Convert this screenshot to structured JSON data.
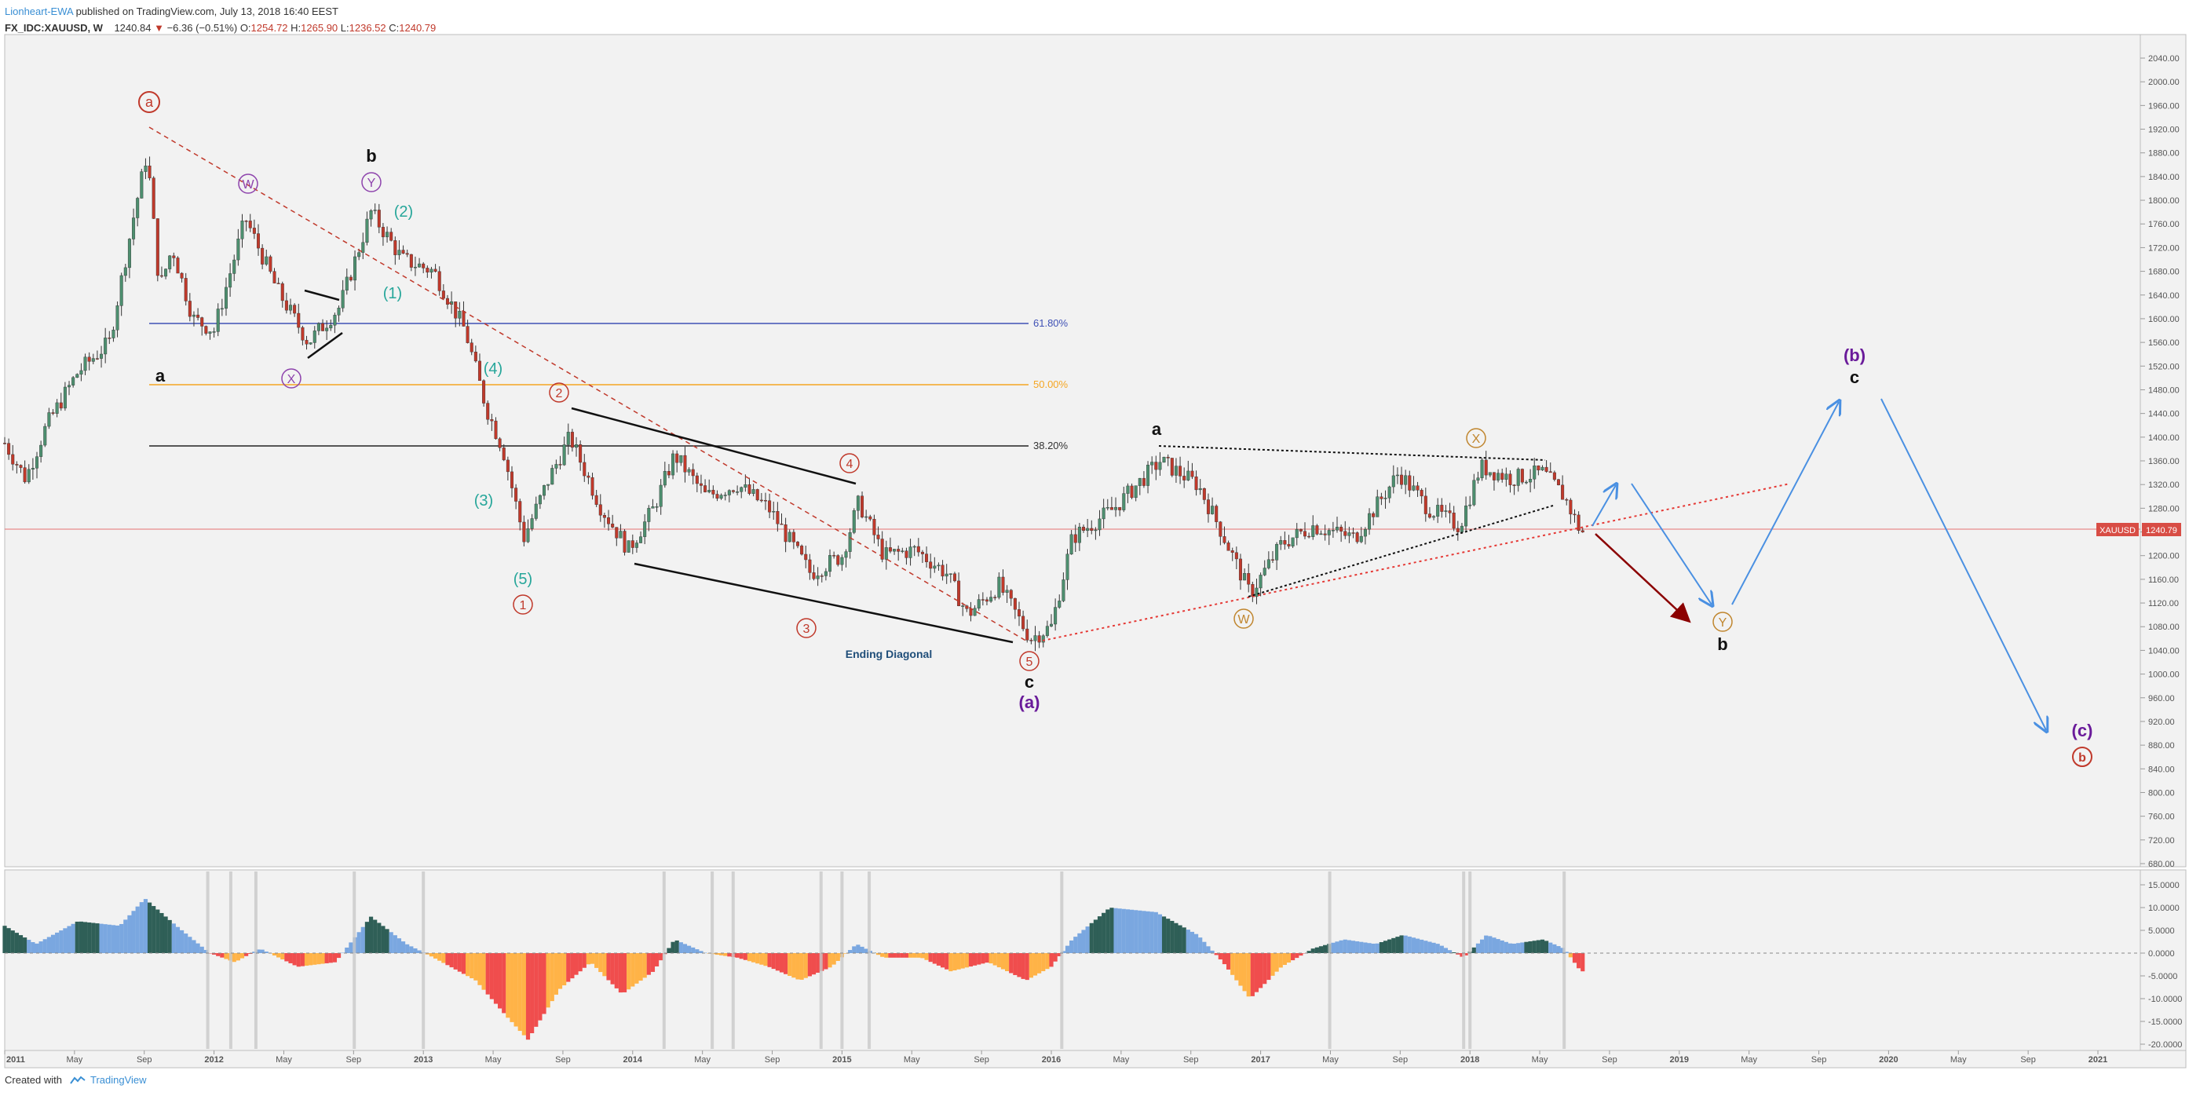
{
  "header": {
    "author": "Lionheart-EWA",
    "published": "published on TradingView.com, July 13, 2018 16:40 EEST",
    "symbol": "FX_IDC:XAUUSD, W",
    "last": "1240.84",
    "change": "−6.36 (−0.51%)",
    "o_label": "O:",
    "o": "1254.72",
    "h_label": "H:",
    "h": "1265.90",
    "l_label": "L:",
    "l": "1236.52",
    "c_label": "C:",
    "c": "1240.79"
  },
  "footer": {
    "created_with": "Created with",
    "brand": "TradingView"
  },
  "colors": {
    "up": "#4d8f6f",
    "down": "#c0392b",
    "fib618": "#3f51b5",
    "fib50": "#f5a623",
    "fib382": "#222222",
    "wave_red": "#c0392b",
    "wave_teal": "#26a69a",
    "wave_purple": "#8e44ad",
    "wave_orange": "#c0862f",
    "projection": "#4a90e2",
    "projection_down": "#8b0000",
    "osc_pos_light": "#7aa7e0",
    "osc_pos_dark": "#2f5f57",
    "osc_neg_red": "#f04d4d",
    "osc_neg_orange": "#ffb347"
  },
  "chart_data": {
    "type": "candlestick",
    "symbol": "XAUUSD",
    "price_tag": {
      "symbol": "XAUUSD",
      "value": 1240.79
    },
    "ylim": [
      640,
      2060
    ],
    "y_ticks": [
      "2040.00",
      "2000.00",
      "1960.00",
      "1920.00",
      "1880.00",
      "1840.00",
      "1800.00",
      "1760.00",
      "1720.00",
      "1680.00",
      "1640.00",
      "1600.00",
      "1560.00",
      "1520.00",
      "1480.00",
      "1440.00",
      "1400.00",
      "1360.00",
      "1320.00",
      "1280.00",
      "1240.00",
      "1200.00",
      "1160.00",
      "1120.00",
      "1080.00",
      "1040.00",
      "1000.00",
      "960.00",
      "920.00",
      "880.00",
      "840.00",
      "800.00",
      "760.00",
      "720.00",
      "680.00"
    ],
    "x_ticks": [
      "2011",
      "May",
      "Sep",
      "2012",
      "May",
      "Sep",
      "2013",
      "May",
      "Sep",
      "2014",
      "May",
      "Sep",
      "2015",
      "May",
      "Sep",
      "2016",
      "May",
      "Sep",
      "2017",
      "May",
      "Sep",
      "2018",
      "May",
      "Sep",
      "2019",
      "May",
      "Sep",
      "2020",
      "May",
      "Sep",
      "2021"
    ],
    "fib_levels": [
      {
        "label": "61.80%",
        "value": 1587
      },
      {
        "label": "50.00%",
        "value": 1484
      },
      {
        "label": "38.20%",
        "value": 1381
      }
    ],
    "price_path": [
      {
        "t": 2011.0,
        "p": 1390
      },
      {
        "t": 2011.1,
        "p": 1330
      },
      {
        "t": 2011.2,
        "p": 1420
      },
      {
        "t": 2011.35,
        "p": 1510
      },
      {
        "t": 2011.5,
        "p": 1560
      },
      {
        "t": 2011.62,
        "p": 1780
      },
      {
        "t": 2011.68,
        "p": 1880
      },
      {
        "t": 2011.74,
        "p": 1650
      },
      {
        "t": 2011.8,
        "p": 1720
      },
      {
        "t": 2011.9,
        "p": 1600
      },
      {
        "t": 2012.0,
        "p": 1580
      },
      {
        "t": 2012.15,
        "p": 1770
      },
      {
        "t": 2012.3,
        "p": 1650
      },
      {
        "t": 2012.45,
        "p": 1560
      },
      {
        "t": 2012.6,
        "p": 1620
      },
      {
        "t": 2012.75,
        "p": 1780
      },
      {
        "t": 2012.9,
        "p": 1700
      },
      {
        "t": 2013.05,
        "p": 1680
      },
      {
        "t": 2013.2,
        "p": 1580
      },
      {
        "t": 2013.3,
        "p": 1450
      },
      {
        "t": 2013.38,
        "p": 1380
      },
      {
        "t": 2013.48,
        "p": 1230
      },
      {
        "t": 2013.6,
        "p": 1330
      },
      {
        "t": 2013.7,
        "p": 1400
      },
      {
        "t": 2013.85,
        "p": 1280
      },
      {
        "t": 2013.98,
        "p": 1210
      },
      {
        "t": 2014.1,
        "p": 1280
      },
      {
        "t": 2014.2,
        "p": 1370
      },
      {
        "t": 2014.35,
        "p": 1300
      },
      {
        "t": 2014.5,
        "p": 1320
      },
      {
        "t": 2014.65,
        "p": 1280
      },
      {
        "t": 2014.85,
        "p": 1170
      },
      {
        "t": 2015.0,
        "p": 1200
      },
      {
        "t": 2015.08,
        "p": 1290
      },
      {
        "t": 2015.2,
        "p": 1200
      },
      {
        "t": 2015.35,
        "p": 1210
      },
      {
        "t": 2015.5,
        "p": 1170
      },
      {
        "t": 2015.6,
        "p": 1100
      },
      {
        "t": 2015.75,
        "p": 1150
      },
      {
        "t": 2015.9,
        "p": 1060
      },
      {
        "t": 2016.0,
        "p": 1080
      },
      {
        "t": 2016.1,
        "p": 1230
      },
      {
        "t": 2016.3,
        "p": 1280
      },
      {
        "t": 2016.52,
        "p": 1360
      },
      {
        "t": 2016.7,
        "p": 1320
      },
      {
        "t": 2016.8,
        "p": 1250
      },
      {
        "t": 2016.95,
        "p": 1135
      },
      {
        "t": 2017.1,
        "p": 1220
      },
      {
        "t": 2017.25,
        "p": 1250
      },
      {
        "t": 2017.45,
        "p": 1230
      },
      {
        "t": 2017.66,
        "p": 1340
      },
      {
        "t": 2017.8,
        "p": 1280
      },
      {
        "t": 2017.95,
        "p": 1250
      },
      {
        "t": 2018.05,
        "p": 1350
      },
      {
        "t": 2018.2,
        "p": 1330
      },
      {
        "t": 2018.35,
        "p": 1340
      },
      {
        "t": 2018.45,
        "p": 1300
      },
      {
        "t": 2018.53,
        "p": 1240
      }
    ],
    "oscillator_ticks": [
      "15.0000",
      "10.0000",
      "5.0000",
      "0.0000",
      "-5.0000",
      "-10.0000",
      "-15.0000",
      "-20.0000"
    ],
    "oscillator_path": [
      {
        "t": 2011.0,
        "v": 6
      },
      {
        "t": 2011.15,
        "v": 2
      },
      {
        "t": 2011.35,
        "v": 7
      },
      {
        "t": 2011.55,
        "v": 6
      },
      {
        "t": 2011.67,
        "v": 12
      },
      {
        "t": 2011.82,
        "v": 6
      },
      {
        "t": 2011.98,
        "v": 0
      },
      {
        "t": 2012.1,
        "v": -2
      },
      {
        "t": 2012.22,
        "v": 1
      },
      {
        "t": 2012.4,
        "v": -3
      },
      {
        "t": 2012.58,
        "v": -2
      },
      {
        "t": 2012.75,
        "v": 8
      },
      {
        "t": 2012.92,
        "v": 2
      },
      {
        "t": 2013.05,
        "v": -1
      },
      {
        "t": 2013.25,
        "v": -6
      },
      {
        "t": 2013.4,
        "v": -14
      },
      {
        "t": 2013.5,
        "v": -19
      },
      {
        "t": 2013.65,
        "v": -8
      },
      {
        "t": 2013.8,
        "v": -2
      },
      {
        "t": 2013.95,
        "v": -9
      },
      {
        "t": 2014.1,
        "v": -4
      },
      {
        "t": 2014.2,
        "v": 3
      },
      {
        "t": 2014.35,
        "v": 0
      },
      {
        "t": 2014.5,
        "v": -1
      },
      {
        "t": 2014.65,
        "v": -3
      },
      {
        "t": 2014.8,
        "v": -6
      },
      {
        "t": 2014.95,
        "v": -3
      },
      {
        "t": 2015.07,
        "v": 2
      },
      {
        "t": 2015.2,
        "v": -1
      },
      {
        "t": 2015.38,
        "v": -1
      },
      {
        "t": 2015.52,
        "v": -4
      },
      {
        "t": 2015.7,
        "v": -2
      },
      {
        "t": 2015.88,
        "v": -6
      },
      {
        "t": 2016.0,
        "v": -3
      },
      {
        "t": 2016.1,
        "v": 3
      },
      {
        "t": 2016.28,
        "v": 10
      },
      {
        "t": 2016.5,
        "v": 9
      },
      {
        "t": 2016.7,
        "v": 4
      },
      {
        "t": 2016.82,
        "v": -2
      },
      {
        "t": 2016.95,
        "v": -10
      },
      {
        "t": 2017.1,
        "v": -3
      },
      {
        "t": 2017.25,
        "v": 1
      },
      {
        "t": 2017.4,
        "v": 3
      },
      {
        "t": 2017.55,
        "v": 2
      },
      {
        "t": 2017.68,
        "v": 4
      },
      {
        "t": 2017.85,
        "v": 2
      },
      {
        "t": 2017.97,
        "v": -1
      },
      {
        "t": 2018.08,
        "v": 4
      },
      {
        "t": 2018.2,
        "v": 2
      },
      {
        "t": 2018.35,
        "v": 3
      },
      {
        "t": 2018.45,
        "v": 1
      },
      {
        "t": 2018.53,
        "v": -4
      }
    ]
  },
  "fib": {
    "f618": "61.80%",
    "f50": "50.00%",
    "f382": "38.20%"
  },
  "waves": {
    "a_red": "a",
    "b_black_top": "b",
    "W_purple": "W",
    "Y_purple": "Y",
    "X_purple": "X",
    "a_black_left": "a",
    "n1": "(1)",
    "n2": "(2)",
    "n3": "(3)",
    "n4": "(4)",
    "n5": "(5)",
    "c1": "1",
    "c2": "2",
    "c3": "3",
    "c4": "4",
    "c5": "5",
    "c_black": "c",
    "a_paren": "(a)",
    "ending_diagonal": "Ending Diagonal",
    "a_black_2016": "a",
    "X_orange": "X",
    "W_orange": "W",
    "Y_orange": "Y",
    "b_black_proj": "b",
    "b_paren": "(b)",
    "c_black_proj": "c",
    "c_paren": "(c)",
    "b_red": "b"
  },
  "price_tag": {
    "symbol": "XAUUSD",
    "value": "1240.79"
  }
}
